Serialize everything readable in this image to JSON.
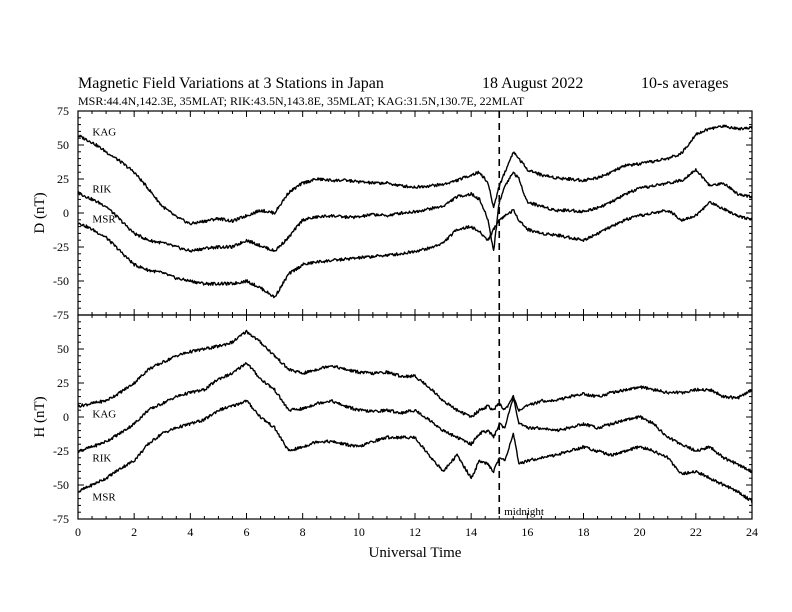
{
  "figure": {
    "title": "Magnetic Field Variations at 3 Stations in Japan",
    "date": "18  August  2022",
    "averaging": "10-s averages",
    "subtitle": "MSR:44.4N,142.3E, 35MLAT;  RIK:43.5N,143.8E, 35MLAT;  KAG:31.5N,130.7E, 22MLAT",
    "xlabel": "Universal Time",
    "midnight_label": "midnight",
    "midnight_ut": 15
  },
  "chart_data": [
    {
      "type": "line",
      "panel": "D",
      "ylabel": "D (nT)",
      "xlim": [
        0,
        24
      ],
      "ylim": [
        -75,
        75
      ],
      "xticks": [
        0,
        2,
        4,
        6,
        8,
        10,
        12,
        14,
        16,
        18,
        20,
        22,
        24
      ],
      "yticks": [
        -75,
        -50,
        -25,
        0,
        25,
        50,
        75
      ],
      "grid": false,
      "series": [
        {
          "name": "KAG",
          "x": [
            0,
            0.5,
            1,
            1.5,
            2,
            2.5,
            3,
            3.5,
            4,
            4.5,
            5,
            5.5,
            6,
            6.5,
            7,
            7.5,
            8,
            8.5,
            9,
            9.5,
            10,
            10.5,
            11,
            11.5,
            12,
            12.5,
            13,
            13.5,
            14,
            14.3,
            14.6,
            14.8,
            15,
            15.2,
            15.5,
            15.7,
            16,
            16.5,
            17,
            17.5,
            18,
            18.5,
            19,
            19.5,
            20,
            20.5,
            21,
            21.5,
            22,
            22.5,
            23,
            23.5,
            24
          ],
          "y": [
            57,
            52,
            45,
            38,
            30,
            18,
            5,
            -3,
            -8,
            -6,
            -4,
            -6,
            -2,
            2,
            0,
            15,
            22,
            25,
            24,
            24,
            23,
            22,
            22,
            20,
            19,
            20,
            21,
            24,
            28,
            30,
            22,
            4,
            20,
            30,
            45,
            40,
            32,
            28,
            26,
            25,
            24,
            26,
            30,
            35,
            36,
            38,
            40,
            44,
            58,
            62,
            64,
            62,
            63
          ]
        },
        {
          "name": "RIK",
          "x": [
            0,
            0.5,
            1,
            1.5,
            2,
            2.5,
            3,
            3.5,
            4,
            4.5,
            5,
            5.5,
            6,
            6.5,
            7,
            7.5,
            8,
            8.5,
            9,
            9.5,
            10,
            10.5,
            11,
            11.5,
            12,
            12.5,
            13,
            13.5,
            14,
            14.3,
            14.6,
            14.8,
            15,
            15.2,
            15.5,
            15.7,
            16,
            16.5,
            17,
            17.5,
            18,
            18.5,
            19,
            19.5,
            20,
            20.5,
            21,
            21.5,
            22,
            22.5,
            23,
            23.5,
            24
          ],
          "y": [
            15,
            10,
            5,
            -5,
            -15,
            -20,
            -22,
            -25,
            -28,
            -26,
            -25,
            -25,
            -20,
            -24,
            -28,
            -18,
            -5,
            -3,
            -2,
            -3,
            -3,
            -1,
            -2,
            0,
            1,
            3,
            5,
            12,
            14,
            10,
            -5,
            -28,
            8,
            20,
            30,
            25,
            8,
            5,
            2,
            2,
            1,
            4,
            8,
            14,
            18,
            20,
            22,
            24,
            32,
            20,
            22,
            14,
            12
          ]
        },
        {
          "name": "MSR",
          "x": [
            0,
            0.5,
            1,
            1.5,
            2,
            2.5,
            3,
            3.5,
            4,
            4.5,
            5,
            5.5,
            6,
            6.5,
            7,
            7.5,
            8,
            8.5,
            9,
            9.5,
            10,
            10.5,
            11,
            11.5,
            12,
            12.5,
            13,
            13.5,
            14,
            14.3,
            14.6,
            14.8,
            15,
            15.2,
            15.5,
            15.7,
            16,
            16.5,
            17,
            17.5,
            18,
            18.5,
            19,
            19.5,
            20,
            20.5,
            21,
            21.5,
            22,
            22.5,
            23,
            23.5,
            24
          ],
          "y": [
            -7,
            -12,
            -18,
            -28,
            -38,
            -42,
            -44,
            -48,
            -50,
            -52,
            -52,
            -52,
            -50,
            -55,
            -62,
            -45,
            -38,
            -36,
            -35,
            -34,
            -33,
            -32,
            -31,
            -30,
            -28,
            -26,
            -22,
            -12,
            -10,
            -14,
            -20,
            -12,
            -5,
            -2,
            2,
            -5,
            -12,
            -15,
            -16,
            -18,
            -20,
            -15,
            -10,
            -5,
            -2,
            0,
            2,
            -5,
            -2,
            8,
            3,
            -2,
            -5
          ]
        }
      ]
    },
    {
      "type": "line",
      "panel": "H",
      "ylabel": "H (nT)",
      "xlim": [
        0,
        24
      ],
      "ylim": [
        -75,
        75
      ],
      "xticks": [
        0,
        2,
        4,
        6,
        8,
        10,
        12,
        14,
        16,
        18,
        20,
        22,
        24
      ],
      "yticks": [
        -75,
        -50,
        -25,
        0,
        25,
        50,
        75
      ],
      "grid": false,
      "series": [
        {
          "name": "KAG",
          "x": [
            0,
            0.5,
            1,
            1.5,
            2,
            2.5,
            3,
            3.5,
            4,
            4.5,
            5,
            5.5,
            6,
            6.5,
            7,
            7.5,
            8,
            8.5,
            9,
            9.5,
            10,
            10.5,
            11,
            11.5,
            12,
            12.5,
            13,
            13.5,
            14,
            14.3,
            14.6,
            14.8,
            15,
            15.2,
            15.5,
            15.7,
            16,
            16.5,
            17,
            17.5,
            18,
            18.5,
            19,
            19.5,
            20,
            20.5,
            21,
            21.5,
            22,
            22.5,
            23,
            23.5,
            24
          ],
          "y": [
            8,
            10,
            12,
            18,
            25,
            35,
            40,
            45,
            48,
            50,
            52,
            55,
            63,
            55,
            45,
            35,
            32,
            35,
            38,
            35,
            33,
            32,
            33,
            30,
            30,
            22,
            12,
            5,
            0,
            5,
            8,
            5,
            10,
            5,
            15,
            5,
            8,
            12,
            12,
            15,
            17,
            15,
            18,
            20,
            22,
            20,
            18,
            18,
            20,
            20,
            15,
            14,
            20
          ]
        },
        {
          "name": "RIK",
          "x": [
            0,
            0.5,
            1,
            1.5,
            2,
            2.5,
            3,
            3.5,
            4,
            4.5,
            5,
            5.5,
            6,
            6.5,
            7,
            7.5,
            8,
            8.5,
            9,
            9.5,
            10,
            10.5,
            11,
            11.5,
            12,
            12.5,
            13,
            13.5,
            14,
            14.3,
            14.6,
            14.8,
            15,
            15.2,
            15.5,
            15.7,
            16,
            16.5,
            17,
            17.5,
            18,
            18.5,
            19,
            19.5,
            20,
            20.5,
            21,
            21.5,
            22,
            22.5,
            23,
            23.5,
            24
          ],
          "y": [
            -25,
            -22,
            -18,
            -12,
            -5,
            5,
            10,
            15,
            18,
            20,
            28,
            32,
            40,
            28,
            20,
            5,
            6,
            10,
            12,
            8,
            5,
            4,
            5,
            3,
            5,
            -2,
            -10,
            -15,
            -20,
            -12,
            -10,
            -15,
            -5,
            -8,
            15,
            -5,
            -8,
            -8,
            -10,
            -8,
            -5,
            -8,
            -5,
            -2,
            0,
            -5,
            -15,
            -20,
            -25,
            -22,
            -30,
            -35,
            -40
          ]
        },
        {
          "name": "MSR",
          "x": [
            0,
            0.5,
            1,
            1.5,
            2,
            2.5,
            3,
            3.5,
            4,
            4.5,
            5,
            5.5,
            6,
            6.5,
            7,
            7.5,
            8,
            8.5,
            9,
            9.5,
            10,
            10.5,
            11,
            11.5,
            12,
            12.5,
            13,
            13.5,
            14,
            14.3,
            14.6,
            14.8,
            15,
            15.2,
            15.5,
            15.7,
            16,
            16.5,
            17,
            17.5,
            18,
            18.5,
            19,
            19.5,
            20,
            20.5,
            21,
            21.5,
            22,
            22.5,
            23,
            23.5,
            24
          ],
          "y": [
            -55,
            -50,
            -45,
            -38,
            -32,
            -20,
            -12,
            -8,
            -5,
            -2,
            5,
            8,
            12,
            0,
            -8,
            -25,
            -22,
            -18,
            -18,
            -20,
            -22,
            -18,
            -15,
            -15,
            -15,
            -28,
            -40,
            -28,
            -45,
            -32,
            -35,
            -40,
            -30,
            -32,
            -12,
            -35,
            -32,
            -30,
            -28,
            -25,
            -22,
            -25,
            -28,
            -25,
            -22,
            -25,
            -30,
            -42,
            -40,
            -45,
            -50,
            -55,
            -62
          ]
        }
      ]
    }
  ]
}
